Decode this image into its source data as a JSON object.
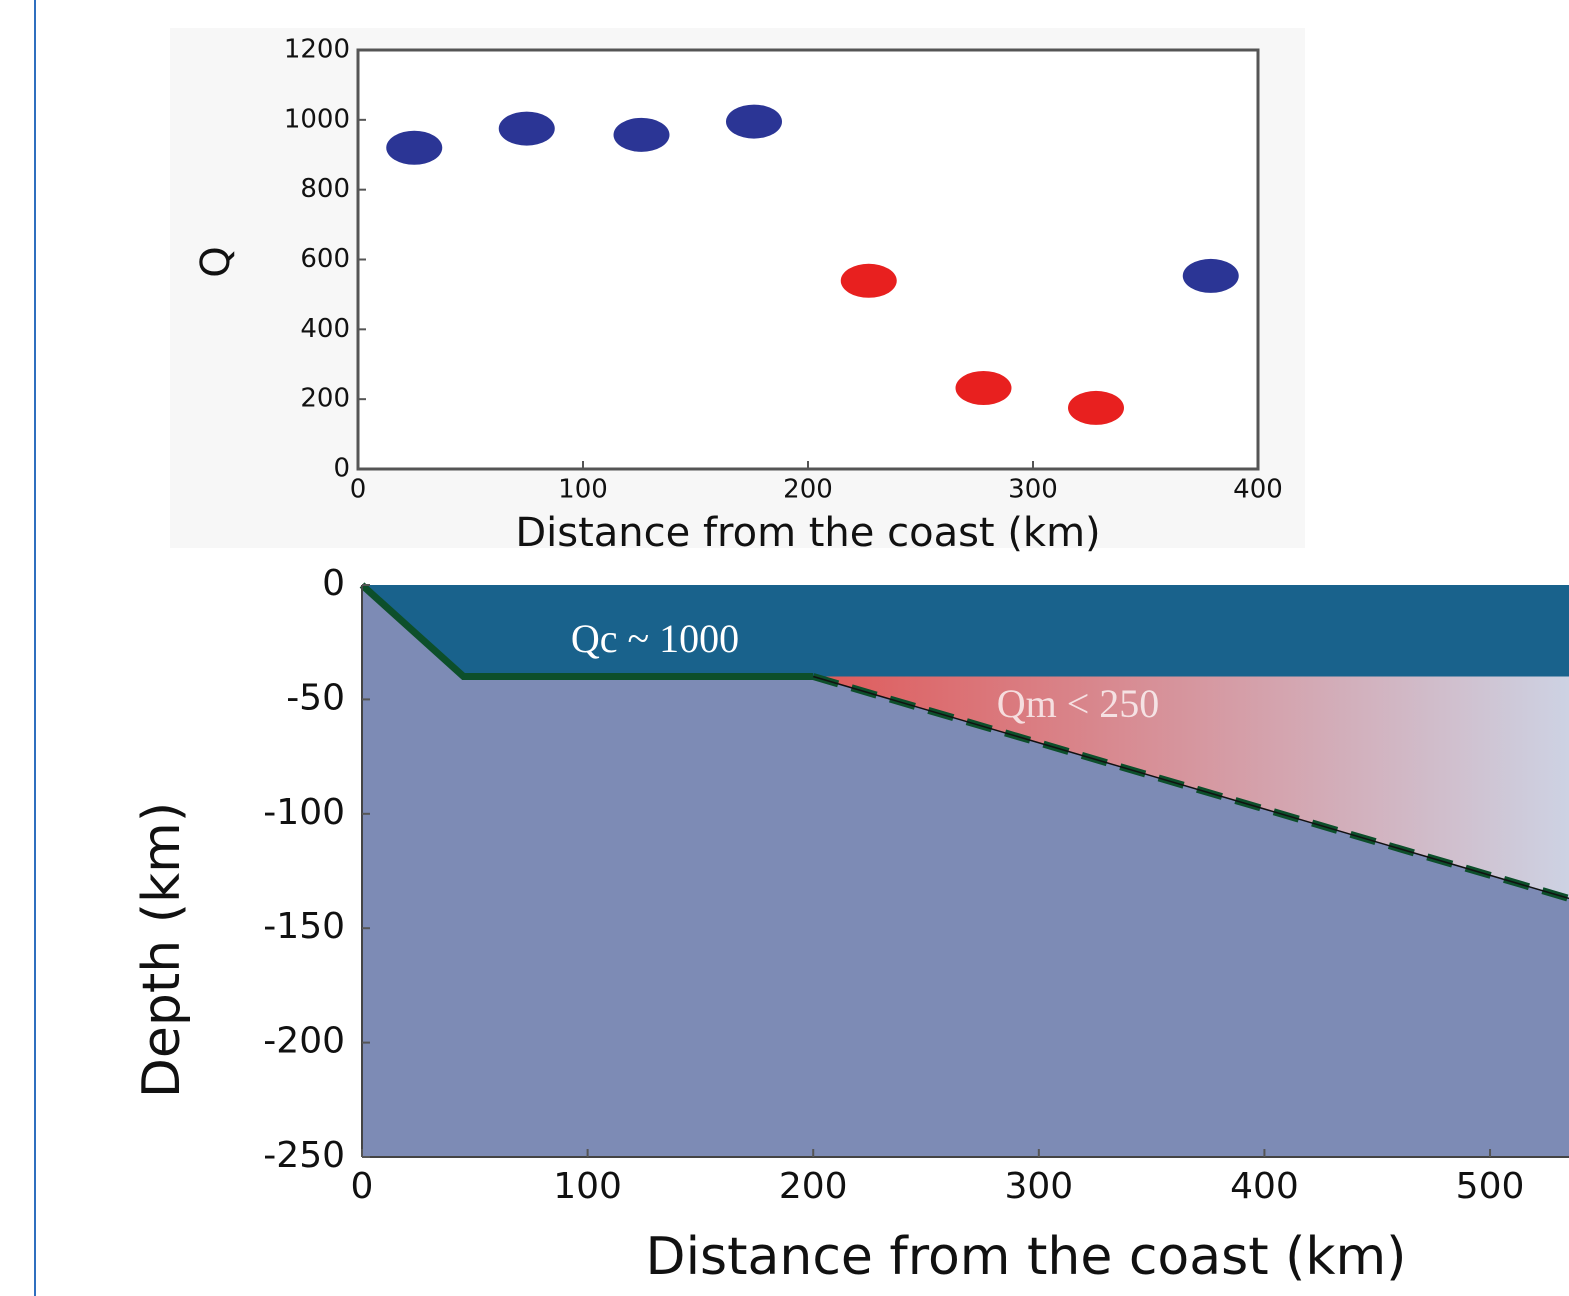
{
  "chart_data": [
    {
      "type": "scatter",
      "x_label": "Distance from the coast (km)",
      "y_label": "Q",
      "xlim": [
        0,
        400
      ],
      "xticks": [
        0,
        100,
        200,
        300,
        400
      ],
      "ylim": [
        0,
        1200
      ],
      "yticks": [
        0,
        200,
        400,
        600,
        800,
        1000,
        1200
      ],
      "series": [
        {
          "color": "#2b3595",
          "x": [
            25,
            75,
            126,
            176,
            379
          ],
          "values": [
            920,
            975,
            957,
            995,
            553
          ]
        },
        {
          "color": "#e8201f",
          "x": [
            227,
            278,
            328
          ],
          "values": [
            539,
            232,
            175
          ]
        }
      ]
    },
    {
      "type": "area",
      "x_label": "Distance from the coast (km)",
      "y_label": "Depth (km)",
      "xlim": [
        0,
        535
      ],
      "xticks": [
        0,
        100,
        200,
        300,
        400,
        500
      ],
      "ylim": [
        -250,
        0
      ],
      "yticks": [
        0,
        -50,
        -100,
        -150,
        -200,
        -250
      ],
      "annotations": [
        "Qc ~ 1000",
        "Qm < 250"
      ],
      "series": [
        {
          "fill": "to_top",
          "color": "#19628c",
          "x": [
            0,
            535
          ],
          "values": [
            -40,
            -40
          ]
        },
        {
          "fill": "polygon",
          "colors": [
            "#df5a5a",
            "#cdd2e3"
          ],
          "x": [
            200,
            535,
            535
          ],
          "values": [
            -40,
            -40,
            -137
          ]
        },
        {
          "fill": "to_bottom",
          "color": "#7d8bb5",
          "x": [
            0,
            45,
            200,
            535
          ],
          "values": [
            0,
            -40,
            -40,
            -137
          ]
        },
        {
          "fill": "none",
          "color": "#0d4f2b",
          "line_style": "solid",
          "x": [
            0,
            45,
            200
          ],
          "values": [
            0,
            -40,
            -40
          ]
        },
        {
          "fill": "none",
          "color": "#0d4f2b",
          "line_style": "dashed",
          "x": [
            200,
            535
          ],
          "values": [
            -40,
            -137
          ]
        }
      ]
    }
  ]
}
